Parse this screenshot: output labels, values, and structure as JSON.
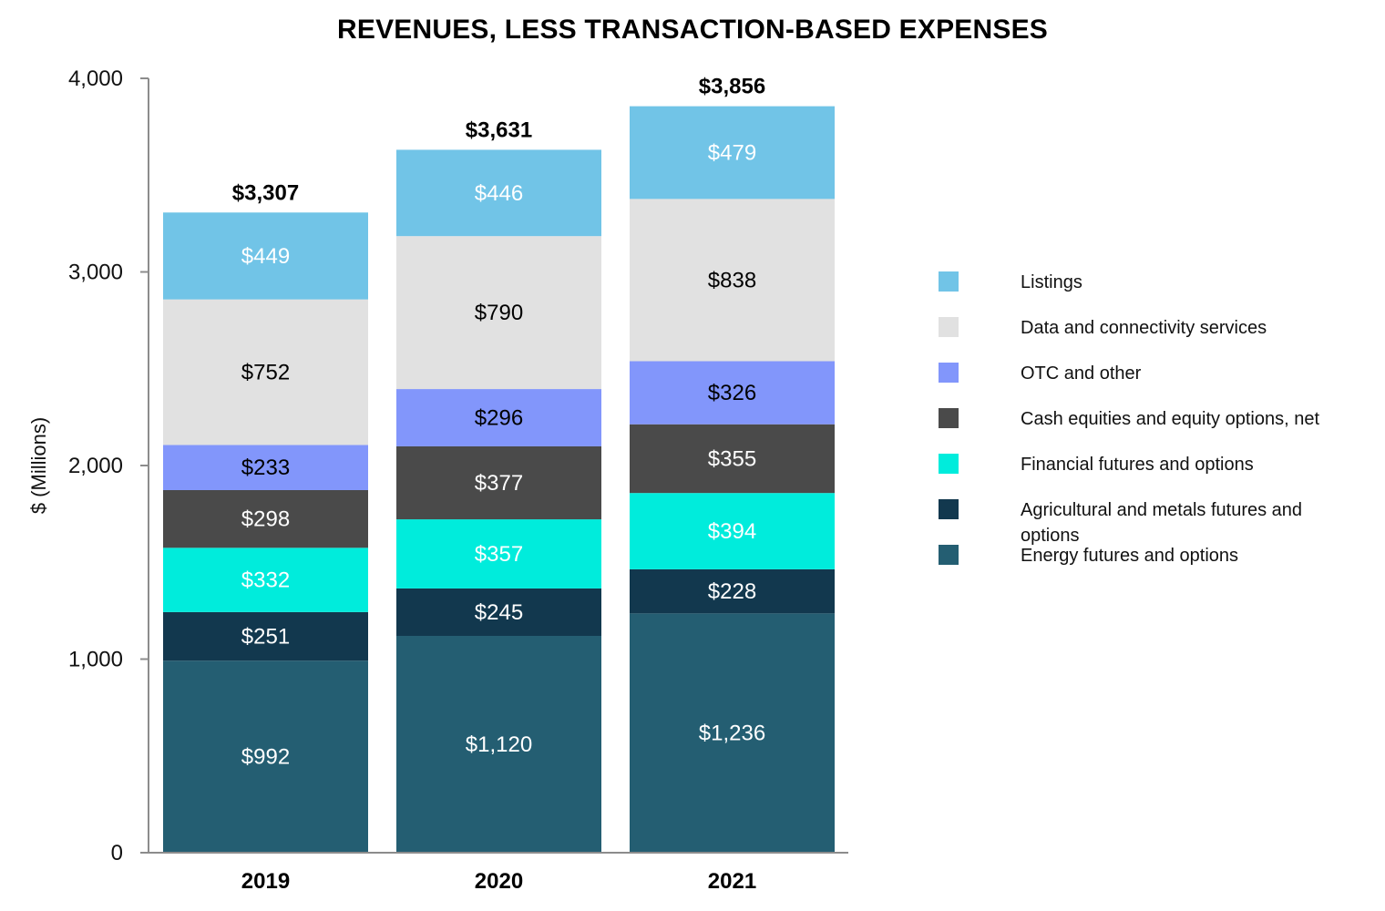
{
  "chart_data": {
    "type": "bar",
    "stacked": true,
    "title": "REVENUES, LESS TRANSACTION-BASED EXPENSES",
    "xlabel": "",
    "ylabel": "$ (Millions)",
    "ylim": [
      0,
      4000
    ],
    "yticks": [
      0,
      1000,
      2000,
      3000,
      4000
    ],
    "ytick_labels": [
      "0",
      "1,000",
      "2,000",
      "3,000",
      "4,000"
    ],
    "categories": [
      "2019",
      "2020",
      "2021"
    ],
    "totals": [
      "$3,307",
      "$3,631",
      "$3,856"
    ],
    "grid": false,
    "legend_position": "right",
    "series": [
      {
        "name": "Energy futures and options",
        "color": "#245E72",
        "label_color": "#ffffff",
        "values": [
          992,
          1120,
          1236
        ],
        "labels": [
          "$992",
          "$1,120",
          "$1,236"
        ]
      },
      {
        "name": "Agricultural and metals futures and options",
        "color": "#12384E",
        "label_color": "#ffffff",
        "values": [
          251,
          245,
          228
        ],
        "labels": [
          "$251",
          "$245",
          "$228"
        ]
      },
      {
        "name": "Financial futures and options",
        "color": "#00ECDC",
        "label_color": "#ffffff",
        "values": [
          332,
          357,
          394
        ],
        "labels": [
          "$332",
          "$357",
          "$394"
        ]
      },
      {
        "name": "Cash equities and equity options, net",
        "color": "#4A4A4A",
        "label_color": "#ffffff",
        "values": [
          298,
          377,
          355
        ],
        "labels": [
          "$298",
          "$377",
          "$355"
        ]
      },
      {
        "name": "OTC and other",
        "color": "#8296FB",
        "label_color": "#000000",
        "values": [
          233,
          296,
          326
        ],
        "labels": [
          "$233",
          "$296",
          "$326"
        ]
      },
      {
        "name": "Data and connectivity services",
        "color": "#E1E1E1",
        "label_color": "#000000",
        "values": [
          752,
          790,
          838
        ],
        "labels": [
          "$752",
          "$790",
          "$838"
        ]
      },
      {
        "name": "Listings",
        "color": "#71C4E7",
        "label_color": "#ffffff",
        "values": [
          449,
          446,
          479
        ],
        "labels": [
          "$449",
          "$446",
          "$479"
        ]
      }
    ],
    "legend": [
      {
        "name": "Listings",
        "color": "#71C4E7"
      },
      {
        "name": "Data and connectivity services",
        "color": "#E1E1E1"
      },
      {
        "name": "OTC and other",
        "color": "#8296FB"
      },
      {
        "name": "Cash equities and equity options, net",
        "color": "#4A4A4A"
      },
      {
        "name": "Financial futures and options",
        "color": "#00ECDC"
      },
      {
        "name": "Agricultural and metals futures and options",
        "color": "#12384E"
      },
      {
        "name": "Energy futures and options",
        "color": "#245E72"
      }
    ]
  }
}
